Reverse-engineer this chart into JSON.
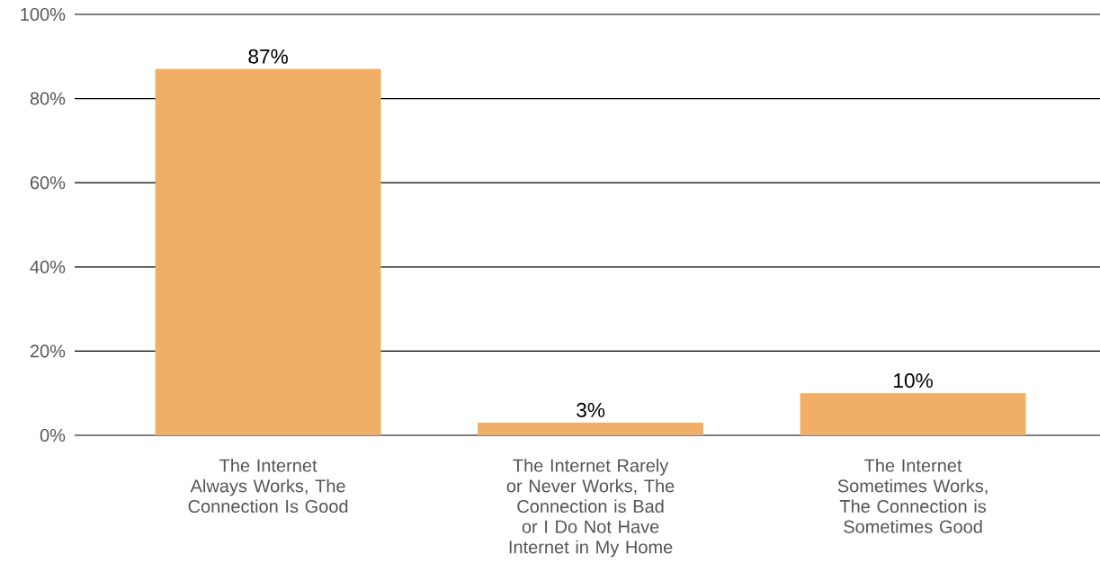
{
  "chart_data": {
    "type": "bar",
    "categories": [
      "The Internet Always Works, The Connection Is Good",
      "The Internet Rarely or Never Works, The Connection is Bad or I Do Not Have Internet in My Home",
      "The Internet Sometimes Works, The Connection is Sometimes Good"
    ],
    "values": [
      87,
      3,
      10
    ],
    "color": "#f0ae67",
    "value_labels": [
      "87%",
      "3%",
      "10%"
    ],
    "ylim": [
      0,
      100
    ],
    "yticks": [
      {
        "value": 0,
        "label": "0%"
      },
      {
        "value": 20,
        "label": "20%"
      },
      {
        "value": 40,
        "label": "40%"
      },
      {
        "value": 60,
        "label": "60%"
      },
      {
        "value": 80,
        "label": "80%"
      },
      {
        "value": 100,
        "label": "100%"
      }
    ],
    "grid": "y"
  }
}
